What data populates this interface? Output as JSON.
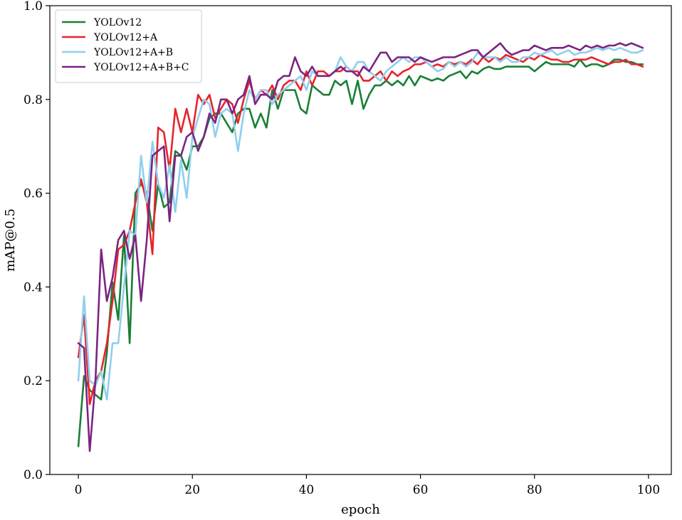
{
  "chart_data": {
    "type": "line",
    "xlabel": "epoch",
    "ylabel": "mAP@0.5",
    "xlim": [
      -5,
      104
    ],
    "ylim": [
      0.0,
      1.0
    ],
    "xticks": [
      0,
      20,
      40,
      60,
      80,
      100
    ],
    "yticks": [
      0.0,
      0.2,
      0.4,
      0.6,
      0.8,
      1.0
    ],
    "grid": false,
    "legend_position": "top-left",
    "series": [
      {
        "name": "YOLOv12",
        "color": "#1a7f37",
        "values": [
          0.06,
          0.21,
          0.18,
          0.17,
          0.16,
          0.26,
          0.41,
          0.33,
          0.51,
          0.28,
          0.6,
          0.62,
          0.6,
          0.52,
          0.62,
          0.57,
          0.58,
          0.69,
          0.68,
          0.65,
          0.7,
          0.7,
          0.72,
          0.76,
          0.77,
          0.77,
          0.75,
          0.73,
          0.77,
          0.78,
          0.78,
          0.74,
          0.77,
          0.74,
          0.82,
          0.78,
          0.82,
          0.82,
          0.82,
          0.78,
          0.77,
          0.83,
          0.82,
          0.81,
          0.81,
          0.84,
          0.83,
          0.84,
          0.79,
          0.84,
          0.78,
          0.81,
          0.83,
          0.83,
          0.84,
          0.83,
          0.84,
          0.83,
          0.85,
          0.83,
          0.85,
          0.845,
          0.84,
          0.845,
          0.84,
          0.85,
          0.855,
          0.86,
          0.845,
          0.86,
          0.855,
          0.865,
          0.87,
          0.865,
          0.865,
          0.87,
          0.87,
          0.87,
          0.87,
          0.87,
          0.86,
          0.87,
          0.88,
          0.875,
          0.875,
          0.875,
          0.875,
          0.87,
          0.885,
          0.87,
          0.875,
          0.875,
          0.87,
          0.875,
          0.885,
          0.885,
          0.88,
          0.88,
          0.875,
          0.875
        ]
      },
      {
        "name": "YOLOv12+A",
        "color": "#e8242b",
        "values": [
          0.25,
          0.34,
          0.15,
          0.2,
          0.22,
          0.28,
          0.37,
          0.48,
          0.49,
          0.52,
          0.58,
          0.63,
          0.58,
          0.47,
          0.74,
          0.73,
          0.65,
          0.78,
          0.73,
          0.78,
          0.73,
          0.81,
          0.79,
          0.81,
          0.76,
          0.78,
          0.8,
          0.79,
          0.75,
          0.8,
          0.84,
          0.8,
          0.82,
          0.81,
          0.83,
          0.8,
          0.83,
          0.84,
          0.84,
          0.82,
          0.86,
          0.83,
          0.86,
          0.86,
          0.85,
          0.86,
          0.86,
          0.87,
          0.86,
          0.86,
          0.84,
          0.84,
          0.85,
          0.86,
          0.84,
          0.86,
          0.85,
          0.86,
          0.865,
          0.875,
          0.875,
          0.88,
          0.87,
          0.875,
          0.87,
          0.88,
          0.875,
          0.88,
          0.875,
          0.885,
          0.875,
          0.89,
          0.88,
          0.89,
          0.885,
          0.895,
          0.89,
          0.885,
          0.88,
          0.89,
          0.885,
          0.895,
          0.89,
          0.885,
          0.885,
          0.88,
          0.88,
          0.885,
          0.885,
          0.885,
          0.89,
          0.885,
          0.88,
          0.875,
          0.88,
          0.88,
          0.885,
          0.875,
          0.875,
          0.87
        ]
      },
      {
        "name": "YOLOv12+A+B",
        "color": "#8fcfee",
        "values": [
          0.2,
          0.38,
          0.2,
          0.19,
          0.22,
          0.16,
          0.28,
          0.28,
          0.4,
          0.52,
          0.51,
          0.68,
          0.58,
          0.71,
          0.62,
          0.59,
          0.66,
          0.56,
          0.67,
          0.59,
          0.72,
          0.76,
          0.8,
          0.79,
          0.72,
          0.77,
          0.78,
          0.77,
          0.69,
          0.77,
          0.82,
          0.8,
          0.82,
          0.82,
          0.79,
          0.81,
          0.82,
          0.83,
          0.84,
          0.85,
          0.82,
          0.86,
          0.85,
          0.85,
          0.85,
          0.86,
          0.89,
          0.87,
          0.86,
          0.88,
          0.88,
          0.86,
          0.85,
          0.84,
          0.86,
          0.87,
          0.88,
          0.89,
          0.88,
          0.89,
          0.89,
          0.88,
          0.87,
          0.86,
          0.865,
          0.88,
          0.87,
          0.88,
          0.87,
          0.88,
          0.9,
          0.89,
          0.89,
          0.89,
          0.88,
          0.89,
          0.88,
          0.88,
          0.89,
          0.89,
          0.9,
          0.895,
          0.9,
          0.905,
          0.895,
          0.9,
          0.905,
          0.895,
          0.9,
          0.9,
          0.905,
          0.91,
          0.905,
          0.91,
          0.905,
          0.91,
          0.905,
          0.9,
          0.9,
          0.905
        ]
      },
      {
        "name": "YOLOv12+A+B+C",
        "color": "#7b2482",
        "values": [
          0.28,
          0.27,
          0.05,
          0.2,
          0.48,
          0.37,
          0.42,
          0.5,
          0.52,
          0.46,
          0.51,
          0.37,
          0.5,
          0.68,
          0.69,
          0.7,
          0.54,
          0.68,
          0.68,
          0.72,
          0.73,
          0.69,
          0.72,
          0.77,
          0.75,
          0.8,
          0.8,
          0.77,
          0.8,
          0.81,
          0.85,
          0.79,
          0.81,
          0.81,
          0.8,
          0.84,
          0.85,
          0.85,
          0.89,
          0.86,
          0.85,
          0.87,
          0.85,
          0.85,
          0.85,
          0.86,
          0.87,
          0.86,
          0.86,
          0.85,
          0.87,
          0.86,
          0.88,
          0.9,
          0.9,
          0.88,
          0.89,
          0.89,
          0.89,
          0.88,
          0.89,
          0.885,
          0.88,
          0.885,
          0.89,
          0.89,
          0.89,
          0.895,
          0.9,
          0.905,
          0.905,
          0.89,
          0.9,
          0.91,
          0.92,
          0.905,
          0.895,
          0.9,
          0.905,
          0.905,
          0.915,
          0.91,
          0.905,
          0.91,
          0.91,
          0.91,
          0.915,
          0.91,
          0.905,
          0.915,
          0.91,
          0.915,
          0.91,
          0.915,
          0.915,
          0.92,
          0.915,
          0.92,
          0.915,
          0.91
        ]
      }
    ]
  }
}
